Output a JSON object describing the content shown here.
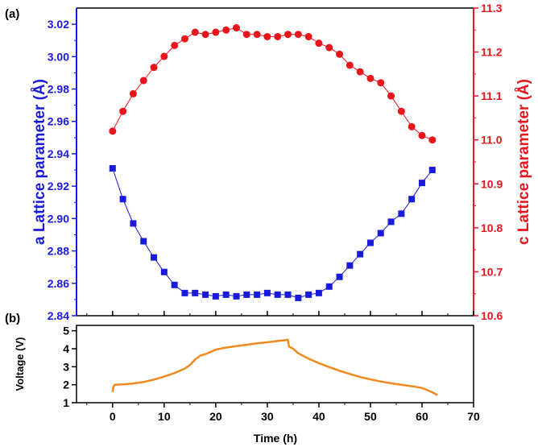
{
  "chart_data": [
    {
      "type": "scatter",
      "panel_label": "(a)",
      "xlim": [
        -7,
        70
      ],
      "x_ticks": [
        0,
        10,
        20,
        30,
        40,
        50,
        60,
        70
      ],
      "left_axis": {
        "label": "a Lattice parameter (Å)",
        "ylim": [
          2.84,
          3.03
        ],
        "ticks": [
          2.84,
          2.86,
          2.88,
          2.9,
          2.92,
          2.94,
          2.96,
          2.98,
          3.0,
          3.02
        ],
        "tick_labels": [
          "2.84",
          "2.86",
          "2.88",
          "2.90",
          "2.92",
          "2.94",
          "2.96",
          "2.98",
          "3.00",
          "3.02"
        ],
        "color": "#1a1adb"
      },
      "right_axis": {
        "label": "c Lattice parameter (Å)",
        "ylim": [
          10.6,
          11.3
        ],
        "ticks": [
          10.6,
          10.7,
          10.8,
          10.9,
          11.0,
          11.1,
          11.2,
          11.3
        ],
        "tick_labels": [
          "10.6",
          "10.7",
          "10.8",
          "10.9",
          "11.0",
          "11.1",
          "11.2",
          "11.3"
        ],
        "color": "#e8161c"
      },
      "series": [
        {
          "axis": "left",
          "marker": "square",
          "color": "#1a1adb",
          "x": [
            0,
            2,
            4,
            6,
            8,
            10,
            12,
            14,
            16,
            18,
            20,
            22,
            24,
            26,
            28,
            30,
            32,
            34,
            36,
            38,
            40,
            42,
            44,
            46,
            48,
            50,
            52,
            54,
            56,
            58,
            60,
            62
          ],
          "y": [
            2.931,
            2.912,
            2.897,
            2.886,
            2.876,
            2.867,
            2.859,
            2.854,
            2.854,
            2.853,
            2.852,
            2.853,
            2.852,
            2.853,
            2.853,
            2.854,
            2.853,
            2.853,
            2.851,
            2.853,
            2.854,
            2.858,
            2.864,
            2.871,
            2.878,
            2.885,
            2.891,
            2.898,
            2.903,
            2.912,
            2.922,
            2.93
          ]
        },
        {
          "axis": "right",
          "marker": "circle",
          "color": "#e8161c",
          "x": [
            0,
            2,
            4,
            6,
            8,
            10,
            12,
            14,
            16,
            18,
            20,
            22,
            24,
            26,
            28,
            30,
            32,
            34,
            36,
            38,
            40,
            42,
            44,
            46,
            48,
            50,
            52,
            54,
            56,
            58,
            60,
            62
          ],
          "y": [
            11.02,
            11.065,
            11.105,
            11.135,
            11.165,
            11.19,
            11.215,
            11.23,
            11.245,
            11.24,
            11.245,
            11.25,
            11.255,
            11.24,
            11.24,
            11.235,
            11.235,
            11.24,
            11.24,
            11.235,
            11.22,
            11.21,
            11.195,
            11.17,
            11.155,
            11.14,
            11.13,
            11.1,
            11.065,
            11.03,
            11.01,
            11.0
          ]
        }
      ]
    },
    {
      "type": "line",
      "panel_label": "(b)",
      "xlabel": "Time (h)",
      "ylabel": "Voltage (V)",
      "xlim": [
        -7,
        70
      ],
      "x_ticks": [
        0,
        10,
        20,
        30,
        40,
        50,
        60,
        70
      ],
      "x_tick_labels": [
        "0",
        "10",
        "20",
        "30",
        "40",
        "50",
        "60",
        "70"
      ],
      "ylim": [
        1,
        5.3
      ],
      "y_ticks": [
        1,
        2,
        3,
        4,
        5
      ],
      "y_tick_labels": [
        "1",
        "2",
        "3",
        "4",
        "5"
      ],
      "color": "#f08a1e",
      "x": [
        0,
        0.15,
        0.4,
        2,
        4,
        6,
        8,
        10,
        12,
        14,
        15,
        16,
        17,
        18,
        20,
        22,
        24,
        26,
        28,
        30,
        32,
        34,
        34.2,
        35,
        36,
        38,
        40,
        42,
        44,
        46,
        48,
        50,
        52,
        54,
        56,
        58,
        60,
        61,
        62,
        63
      ],
      "y": [
        1.6,
        1.9,
        2.0,
        2.02,
        2.07,
        2.15,
        2.28,
        2.45,
        2.65,
        2.9,
        3.1,
        3.4,
        3.62,
        3.7,
        3.95,
        4.07,
        4.15,
        4.22,
        4.3,
        4.36,
        4.43,
        4.5,
        4.12,
        4.0,
        3.75,
        3.45,
        3.2,
        2.98,
        2.78,
        2.6,
        2.43,
        2.3,
        2.18,
        2.08,
        2.0,
        1.92,
        1.82,
        1.7,
        1.58,
        1.42
      ]
    }
  ]
}
